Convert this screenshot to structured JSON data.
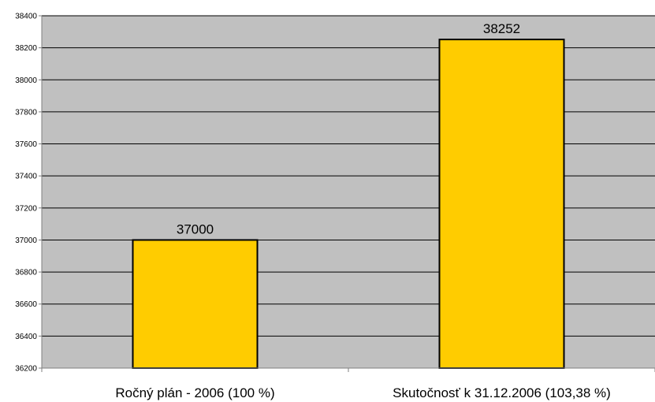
{
  "chart_data": {
    "type": "bar",
    "title": "",
    "xlabel": "",
    "ylabel": "",
    "categories": [
      "Ročný plán - 2006 (100 %)",
      "Skutočnosť k 31.12.2006 (103,38 %)"
    ],
    "values": [
      37000,
      38252
    ],
    "data_labels": [
      "37000",
      "38252"
    ],
    "ylim": [
      36200,
      38400
    ],
    "yticks": [
      36200,
      36400,
      36600,
      36800,
      37000,
      37200,
      37400,
      37600,
      37800,
      38000,
      38200,
      38400
    ],
    "ytick_labels": [
      "36200",
      "36400",
      "36600",
      "36800",
      "37000",
      "37200",
      "37400",
      "37600",
      "37800",
      "38000",
      "38200",
      "38400"
    ],
    "grid": true,
    "legend": "none"
  },
  "colors": {
    "plot_background": "#c0c0c0",
    "bar_fill": "#ffcc00",
    "bar_stroke": "#000000",
    "grid": "#000000",
    "axis": "#808080"
  }
}
